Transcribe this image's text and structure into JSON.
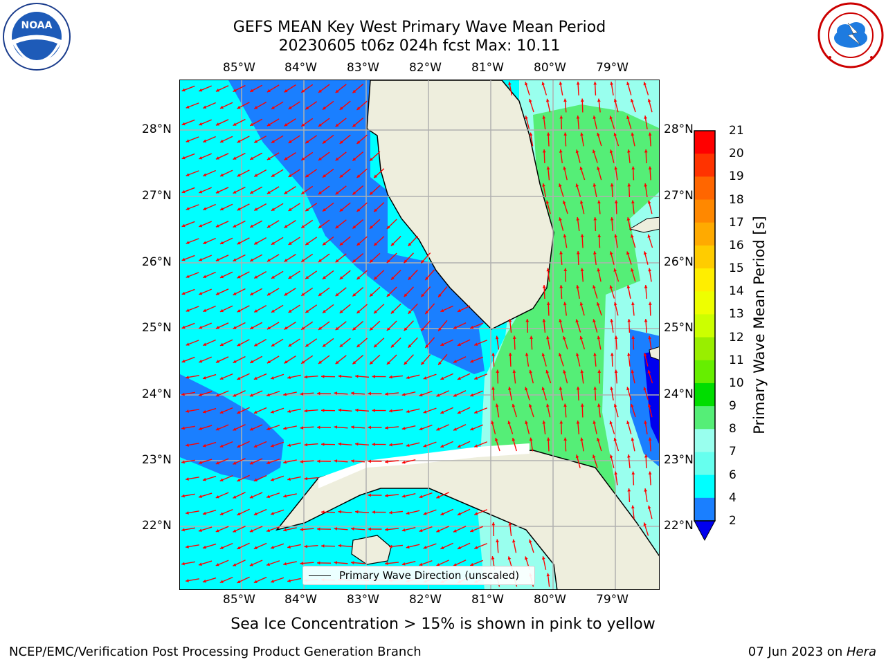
{
  "title": {
    "line1": "GEFS MEAN Key West Primary Wave Mean Period",
    "line2": "20230605 t06z 024h fcst   Max: 10.11"
  },
  "logos": {
    "left": {
      "text": "NOAA",
      "icon": "noaa-logo"
    },
    "right": {
      "icon": "nws-logo"
    }
  },
  "map": {
    "lon_labels": [
      "85°W",
      "84°W",
      "83°W",
      "82°W",
      "81°W",
      "80°W",
      "79°W"
    ],
    "lat_labels": [
      "28°N",
      "27°N",
      "26°N",
      "25°N",
      "24°N",
      "23°N",
      "22°N"
    ],
    "extent": {
      "lon": [
        -86,
        -78.3
      ],
      "lat": [
        21.1,
        28.75
      ]
    },
    "grid": true,
    "field": "Primary Wave Mean Period",
    "arrow_color": "#ff0000",
    "land_color": "#eeeedd"
  },
  "colorbar": {
    "title": "Primary Wave Mean Period [s]",
    "labels": [
      "21",
      "20",
      "19",
      "18",
      "17",
      "16",
      "15",
      "14",
      "13",
      "12",
      "11",
      "10",
      "9",
      "8",
      "7",
      "6",
      "4",
      "2"
    ],
    "colors": [
      "#ff0000",
      "#ff3300",
      "#ff6600",
      "#ff8800",
      "#ffaa00",
      "#ffcc00",
      "#ffee00",
      "#eeff00",
      "#ccff00",
      "#99ee00",
      "#66ee00",
      "#00dd00",
      "#55ee77",
      "#99ffee",
      "#66ffee",
      "#00ffff",
      "#1a7fff",
      "#0000ee"
    ]
  },
  "legend": {
    "label": "Primary Wave Direction (unscaled)"
  },
  "caption": "Sea Ice Concentration > 15% is shown in pink to yellow",
  "footer": {
    "left": "NCEP/EMC/Verification Post Processing Product Generation Branch",
    "right_prefix": "07 Jun 2023 on ",
    "right_machine": "Hera"
  }
}
